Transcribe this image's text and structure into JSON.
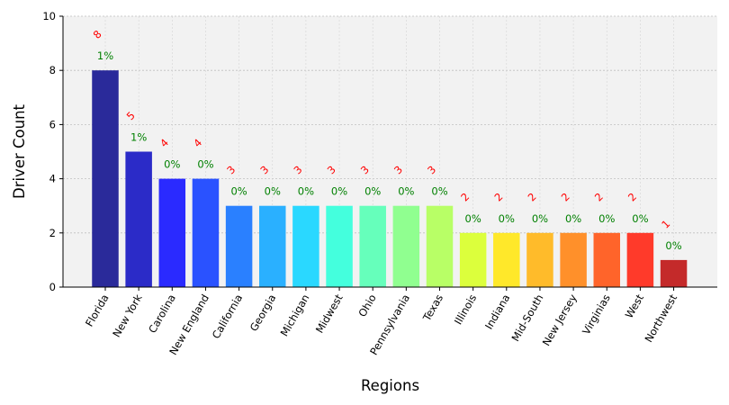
{
  "chart_data": {
    "type": "bar",
    "xlabel": "Regions",
    "ylabel": "Driver Count",
    "ylim": [
      0,
      10
    ],
    "yticks": [
      "0",
      "2",
      "4",
      "6",
      "8",
      "10"
    ],
    "grid": true,
    "categories": [
      "Florida",
      "New York",
      "Carolina",
      "New England",
      "California",
      "Georgia",
      "Michigan",
      "Midwest",
      "Ohio",
      "Pennsylvania",
      "Texas",
      "Illinois",
      "Indiana",
      "Mid-South",
      "New Jersey",
      "Virginias",
      "West",
      "Northwest"
    ],
    "values": [
      8,
      5,
      4,
      4,
      3,
      3,
      3,
      3,
      3,
      3,
      3,
      2,
      2,
      2,
      2,
      2,
      2,
      1
    ],
    "count_labels": [
      "8",
      "5",
      "4",
      "4",
      "3",
      "3",
      "3",
      "3",
      "3",
      "3",
      "3",
      "2",
      "2",
      "2",
      "2",
      "2",
      "2",
      "1"
    ],
    "percent_labels": [
      "1%",
      "1%",
      "0%",
      "0%",
      "0%",
      "0%",
      "0%",
      "0%",
      "0%",
      "0%",
      "0%",
      "0%",
      "0%",
      "0%",
      "0%",
      "0%",
      "0%",
      "0%"
    ],
    "colors": [
      "#2a2a9a",
      "#2b2bc8",
      "#2a2aff",
      "#2a52ff",
      "#2a80ff",
      "#2ab0ff",
      "#2ad8ff",
      "#44ffdd",
      "#66ffbb",
      "#90ff90",
      "#b8ff66",
      "#dcff3c",
      "#ffe82a",
      "#ffbb2a",
      "#ff902a",
      "#ff642a",
      "#ff3a2a",
      "#c42a2a"
    ],
    "plot_background": "#f2f2f2",
    "count_label_color": "#ff0000",
    "percent_label_color": "#008000"
  }
}
